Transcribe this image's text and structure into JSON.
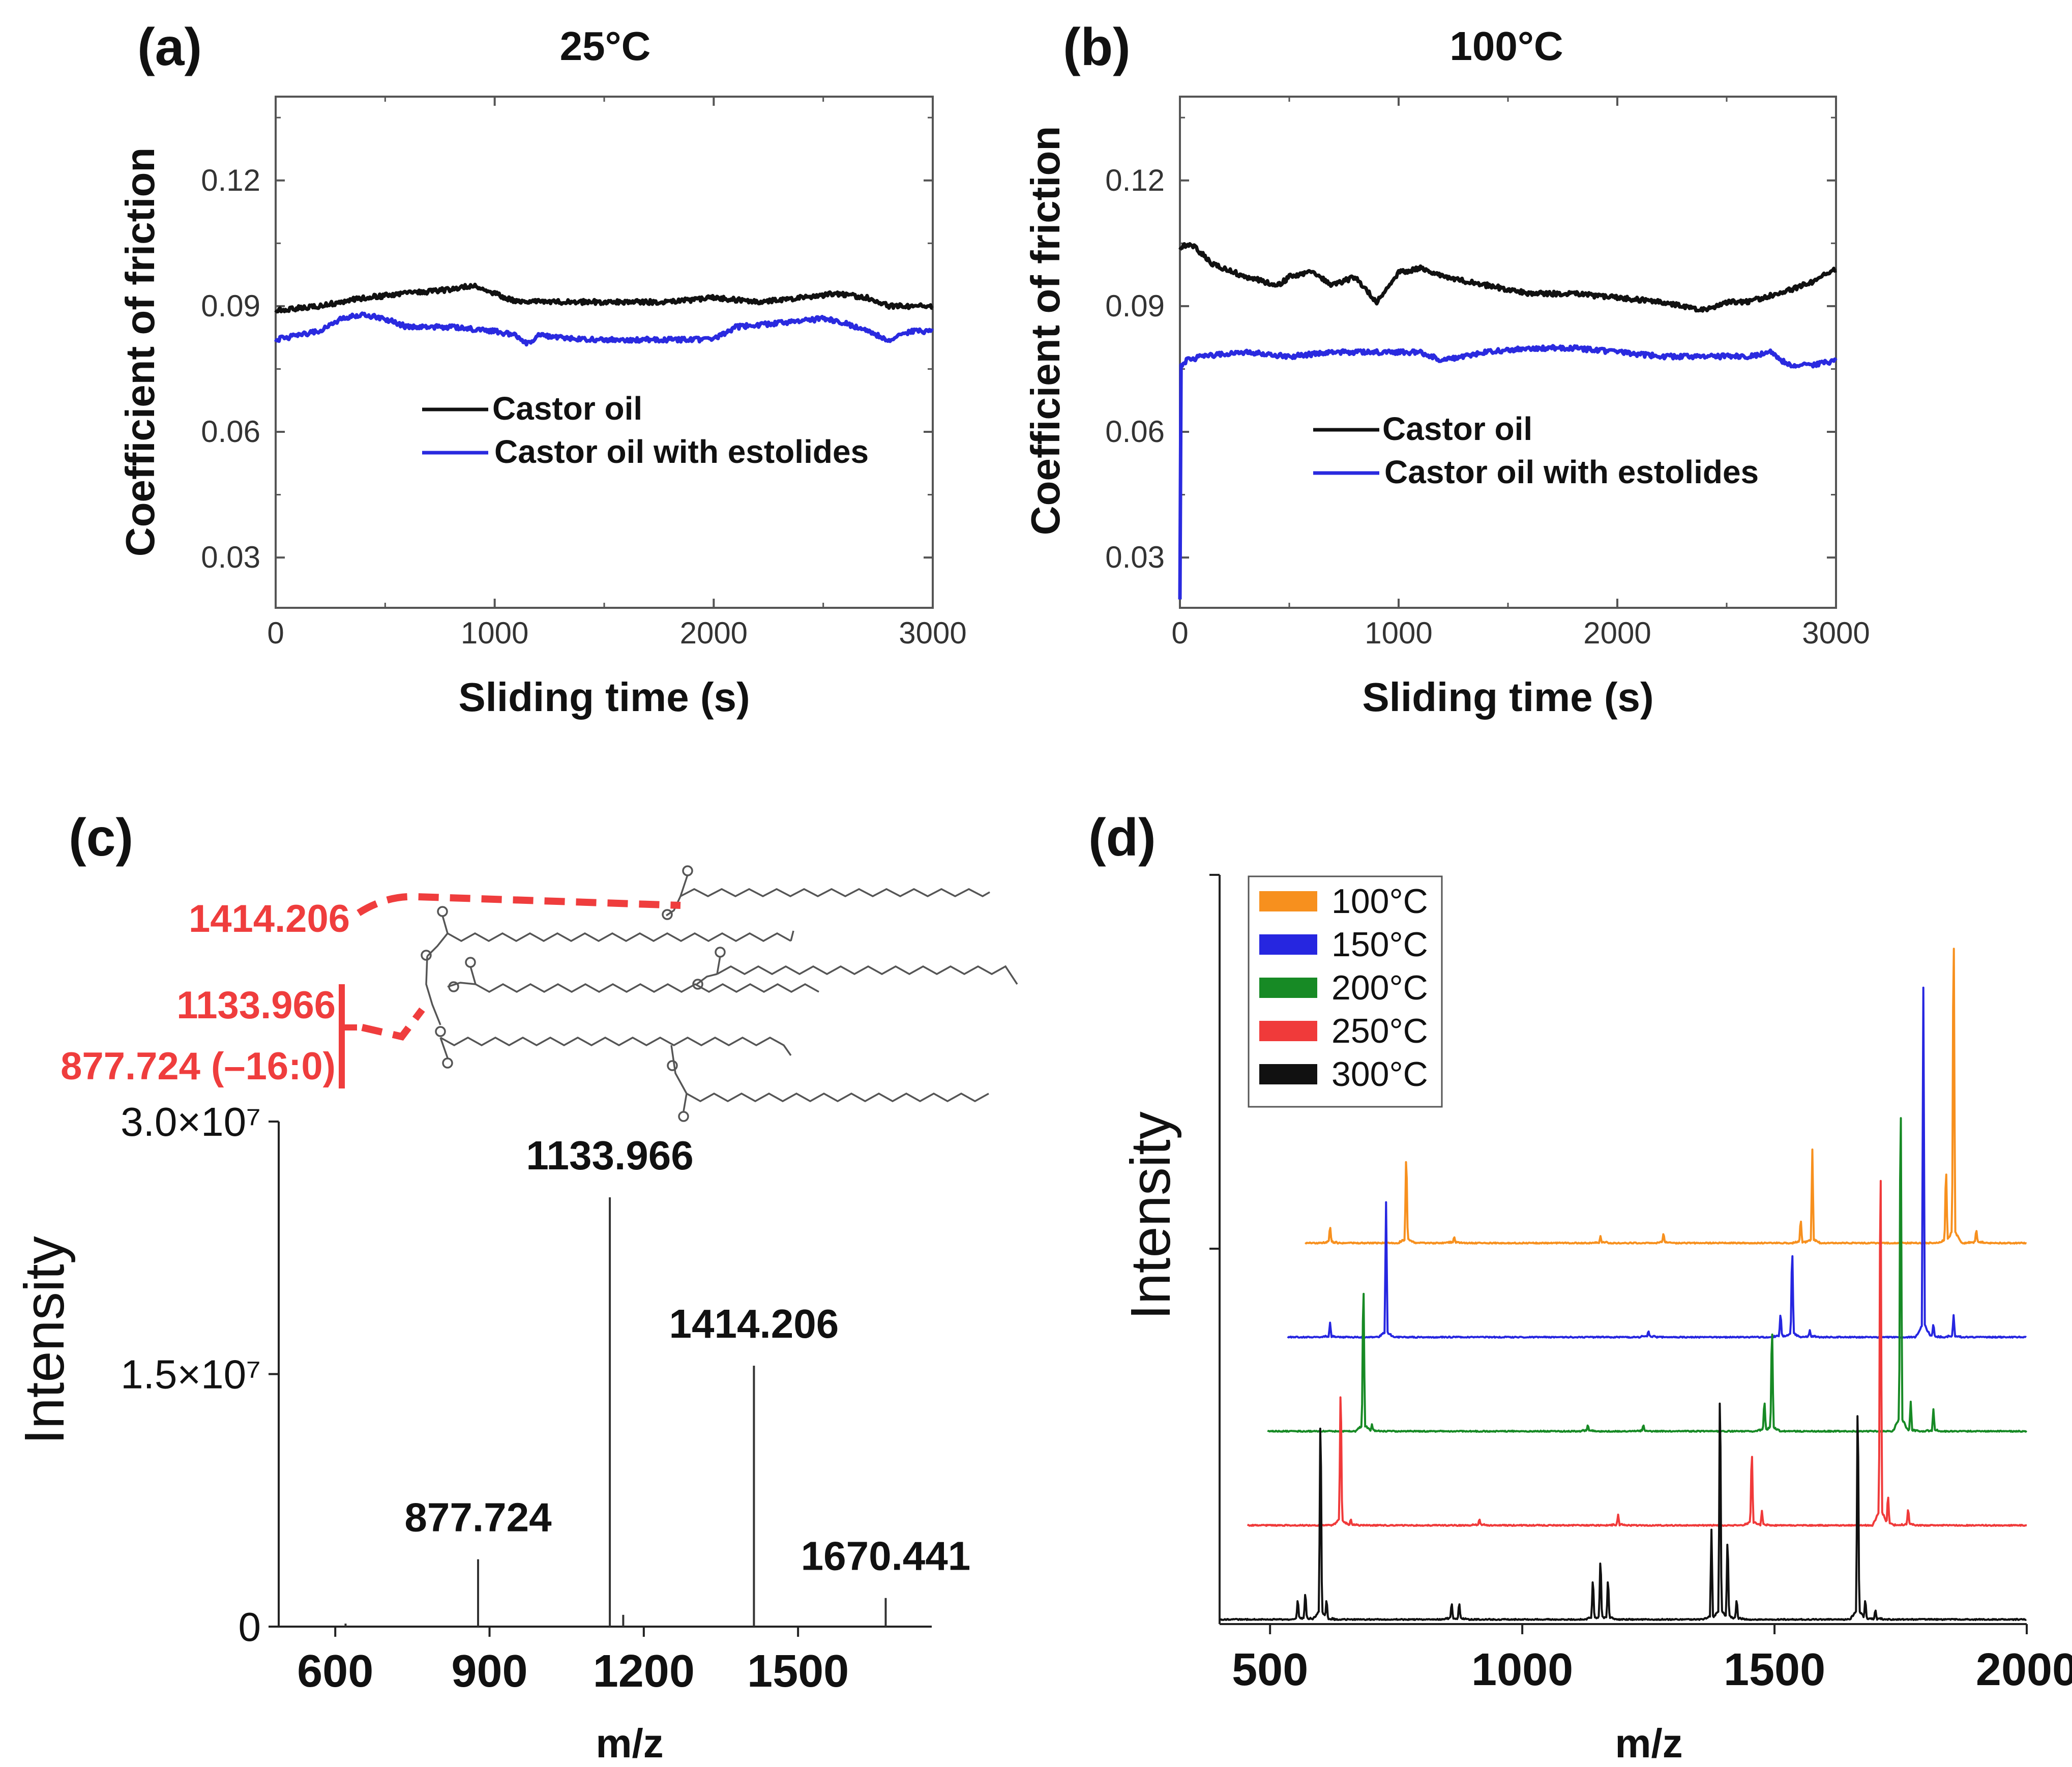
{
  "chart_data": [
    {
      "panel": "(a)",
      "type": "line",
      "title": "25°C",
      "xlabel": "Sliding time (s)",
      "ylabel": "Coefficient of friction",
      "xlim": [
        0,
        3000
      ],
      "ylim": [
        0.018,
        0.14
      ],
      "xticks": [
        "0",
        "1000",
        "2000",
        "3000"
      ],
      "yticks": [
        "0.03",
        "0.06",
        "0.09",
        "0.12"
      ],
      "legend_position": "lower-center",
      "series": [
        {
          "name": "Castor oil",
          "color": "#111111",
          "x": [
            0,
            200,
            400,
            600,
            800,
            900,
            1000,
            1100,
            1200,
            1400,
            1600,
            1800,
            2000,
            2200,
            2400,
            2550,
            2700,
            2800,
            2900,
            3000
          ],
          "y": [
            0.089,
            0.09,
            0.092,
            0.093,
            0.094,
            0.095,
            0.093,
            0.091,
            0.091,
            0.091,
            0.091,
            0.091,
            0.092,
            0.091,
            0.092,
            0.093,
            0.092,
            0.09,
            0.09,
            0.09
          ]
        },
        {
          "name": "Castor oil with estolides",
          "color": "#2a2adf",
          "x": [
            0,
            200,
            300,
            400,
            500,
            600,
            800,
            1000,
            1100,
            1150,
            1200,
            1400,
            1600,
            1800,
            2000,
            2100,
            2300,
            2500,
            2600,
            2700,
            2800,
            2900,
            3000
          ],
          "y": [
            0.082,
            0.084,
            0.087,
            0.088,
            0.087,
            0.085,
            0.085,
            0.084,
            0.083,
            0.081,
            0.083,
            0.082,
            0.082,
            0.082,
            0.082,
            0.085,
            0.086,
            0.087,
            0.086,
            0.084,
            0.082,
            0.084,
            0.084
          ]
        }
      ]
    },
    {
      "panel": "(b)",
      "type": "line",
      "title": "100°C",
      "xlabel": "Sliding time (s)",
      "ylabel": "Coefficient of friction",
      "xlim": [
        0,
        3000
      ],
      "ylim": [
        0.018,
        0.14
      ],
      "xticks": [
        "0",
        "1000",
        "2000",
        "3000"
      ],
      "yticks": [
        "0.03",
        "0.06",
        "0.09",
        "0.12"
      ],
      "legend_position": "lower-center",
      "series": [
        {
          "name": "Castor oil",
          "color": "#111111",
          "x": [
            0,
            50,
            150,
            300,
            450,
            500,
            600,
            700,
            800,
            850,
            900,
            1000,
            1100,
            1200,
            1400,
            1600,
            1800,
            2000,
            2200,
            2400,
            2500,
            2600,
            2800,
            2900,
            3000
          ],
          "y": [
            0.104,
            0.105,
            0.1,
            0.097,
            0.095,
            0.097,
            0.098,
            0.095,
            0.097,
            0.094,
            0.091,
            0.098,
            0.099,
            0.097,
            0.095,
            0.093,
            0.093,
            0.092,
            0.091,
            0.089,
            0.091,
            0.091,
            0.094,
            0.096,
            0.099
          ]
        },
        {
          "name": "Castor oil with estolides",
          "color": "#2a2adf",
          "x": [
            0,
            5,
            30,
            100,
            300,
            500,
            700,
            900,
            1100,
            1200,
            1400,
            1600,
            1800,
            2000,
            2200,
            2400,
            2600,
            2700,
            2750,
            2800,
            2900,
            3000
          ],
          "y": [
            0.02,
            0.076,
            0.077,
            0.078,
            0.079,
            0.078,
            0.079,
            0.079,
            0.079,
            0.077,
            0.079,
            0.08,
            0.08,
            0.079,
            0.078,
            0.078,
            0.078,
            0.079,
            0.077,
            0.076,
            0.076,
            0.077
          ]
        }
      ]
    },
    {
      "panel": "(c)",
      "type": "bar",
      "xlabel": "m/z",
      "ylabel": "Intensity",
      "xlim": [
        500,
        1650
      ],
      "ylim": [
        0,
        30000000
      ],
      "xticks": [
        "600",
        "900",
        "1200",
        "1500"
      ],
      "yticks": [
        "0",
        "1.5×10⁷",
        "3.0×10⁷"
      ],
      "peaks": [
        {
          "mz": 620,
          "intensity": 180000
        },
        {
          "mz": 877.724,
          "intensity": 4000000,
          "label": "877.724"
        },
        {
          "mz": 1133.966,
          "intensity": 25500000,
          "label": "1133.966"
        },
        {
          "mz": 1160,
          "intensity": 700000
        },
        {
          "mz": 1414.206,
          "intensity": 15500000,
          "label": "1414.206"
        },
        {
          "mz": 1670.441,
          "intensity": 1700000,
          "label": "1670.441"
        }
      ],
      "annotations": [
        "1414.206",
        "1133.966",
        "877.724 (–16:0)"
      ]
    },
    {
      "panel": "(d)",
      "type": "line",
      "xlabel": "m/z",
      "ylabel": "Intensity",
      "xlim": [
        400,
        2000
      ],
      "xticks": [
        "500",
        "1000",
        "1500",
        "2000"
      ],
      "legend_position": "top-left",
      "series": [
        {
          "name": "100°C",
          "color": "#f7901e",
          "offset": 1.0,
          "peaks": [
            [
              619,
              0.05
            ],
            [
              770,
              0.26
            ],
            [
              865,
              0.02
            ],
            [
              1155,
              0.02
            ],
            [
              1280,
              0.03
            ],
            [
              1552,
              0.07
            ],
            [
              1575,
              0.25
            ],
            [
              1840,
              0.22
            ],
            [
              1855,
              0.94
            ],
            [
              1900,
              0.04
            ]
          ]
        },
        {
          "name": "150°C",
          "color": "#2626e0",
          "offset": 0.75,
          "peaks": [
            [
              619,
              0.04
            ],
            [
              730,
              0.36
            ],
            [
              1250,
              0.02
            ],
            [
              1512,
              0.07
            ],
            [
              1535,
              0.26
            ],
            [
              1570,
              0.02
            ],
            [
              1795,
              0.93
            ],
            [
              1815,
              0.04
            ],
            [
              1855,
              0.06
            ]
          ]
        },
        {
          "name": "200°C",
          "color": "#178a25",
          "offset": 0.5,
          "peaks": [
            [
              685,
              0.44
            ],
            [
              702,
              0.02
            ],
            [
              1130,
              0.02
            ],
            [
              1240,
              0.02
            ],
            [
              1480,
              0.09
            ],
            [
              1495,
              0.31
            ],
            [
              1750,
              1.0
            ],
            [
              1770,
              0.08
            ],
            [
              1815,
              0.06
            ]
          ]
        },
        {
          "name": "250°C",
          "color": "#f03a3a",
          "offset": 0.25,
          "peaks": [
            [
              640,
              0.41
            ],
            [
              660,
              0.02
            ],
            [
              915,
              0.02
            ],
            [
              1190,
              0.03
            ],
            [
              1455,
              0.22
            ],
            [
              1475,
              0.04
            ],
            [
              1710,
              1.1
            ],
            [
              1725,
              0.09
            ],
            [
              1765,
              0.05
            ]
          ]
        },
        {
          "name": "300°C",
          "color": "#111111",
          "offset": 0.0,
          "peaks": [
            [
              555,
              0.06
            ],
            [
              570,
              0.08
            ],
            [
              600,
              0.61
            ],
            [
              612,
              0.06
            ],
            [
              860,
              0.05
            ],
            [
              875,
              0.05
            ],
            [
              1140,
              0.12
            ],
            [
              1155,
              0.18
            ],
            [
              1170,
              0.12
            ],
            [
              1375,
              0.24
            ],
            [
              1392,
              0.69
            ],
            [
              1407,
              0.24
            ],
            [
              1425,
              0.06
            ],
            [
              1665,
              0.65
            ],
            [
              1680,
              0.06
            ],
            [
              1700,
              0.03
            ]
          ]
        }
      ]
    }
  ],
  "panels": [
    {
      "letter": "(a)",
      "title": "25°C"
    },
    {
      "letter": "(b)",
      "title": "100°C"
    },
    {
      "letter": "(c)"
    },
    {
      "letter": "(d)"
    }
  ],
  "colors": {
    "black_series": "#111111",
    "blue_series": "#2a2adf",
    "annotation_red": "#ef3d3d"
  }
}
